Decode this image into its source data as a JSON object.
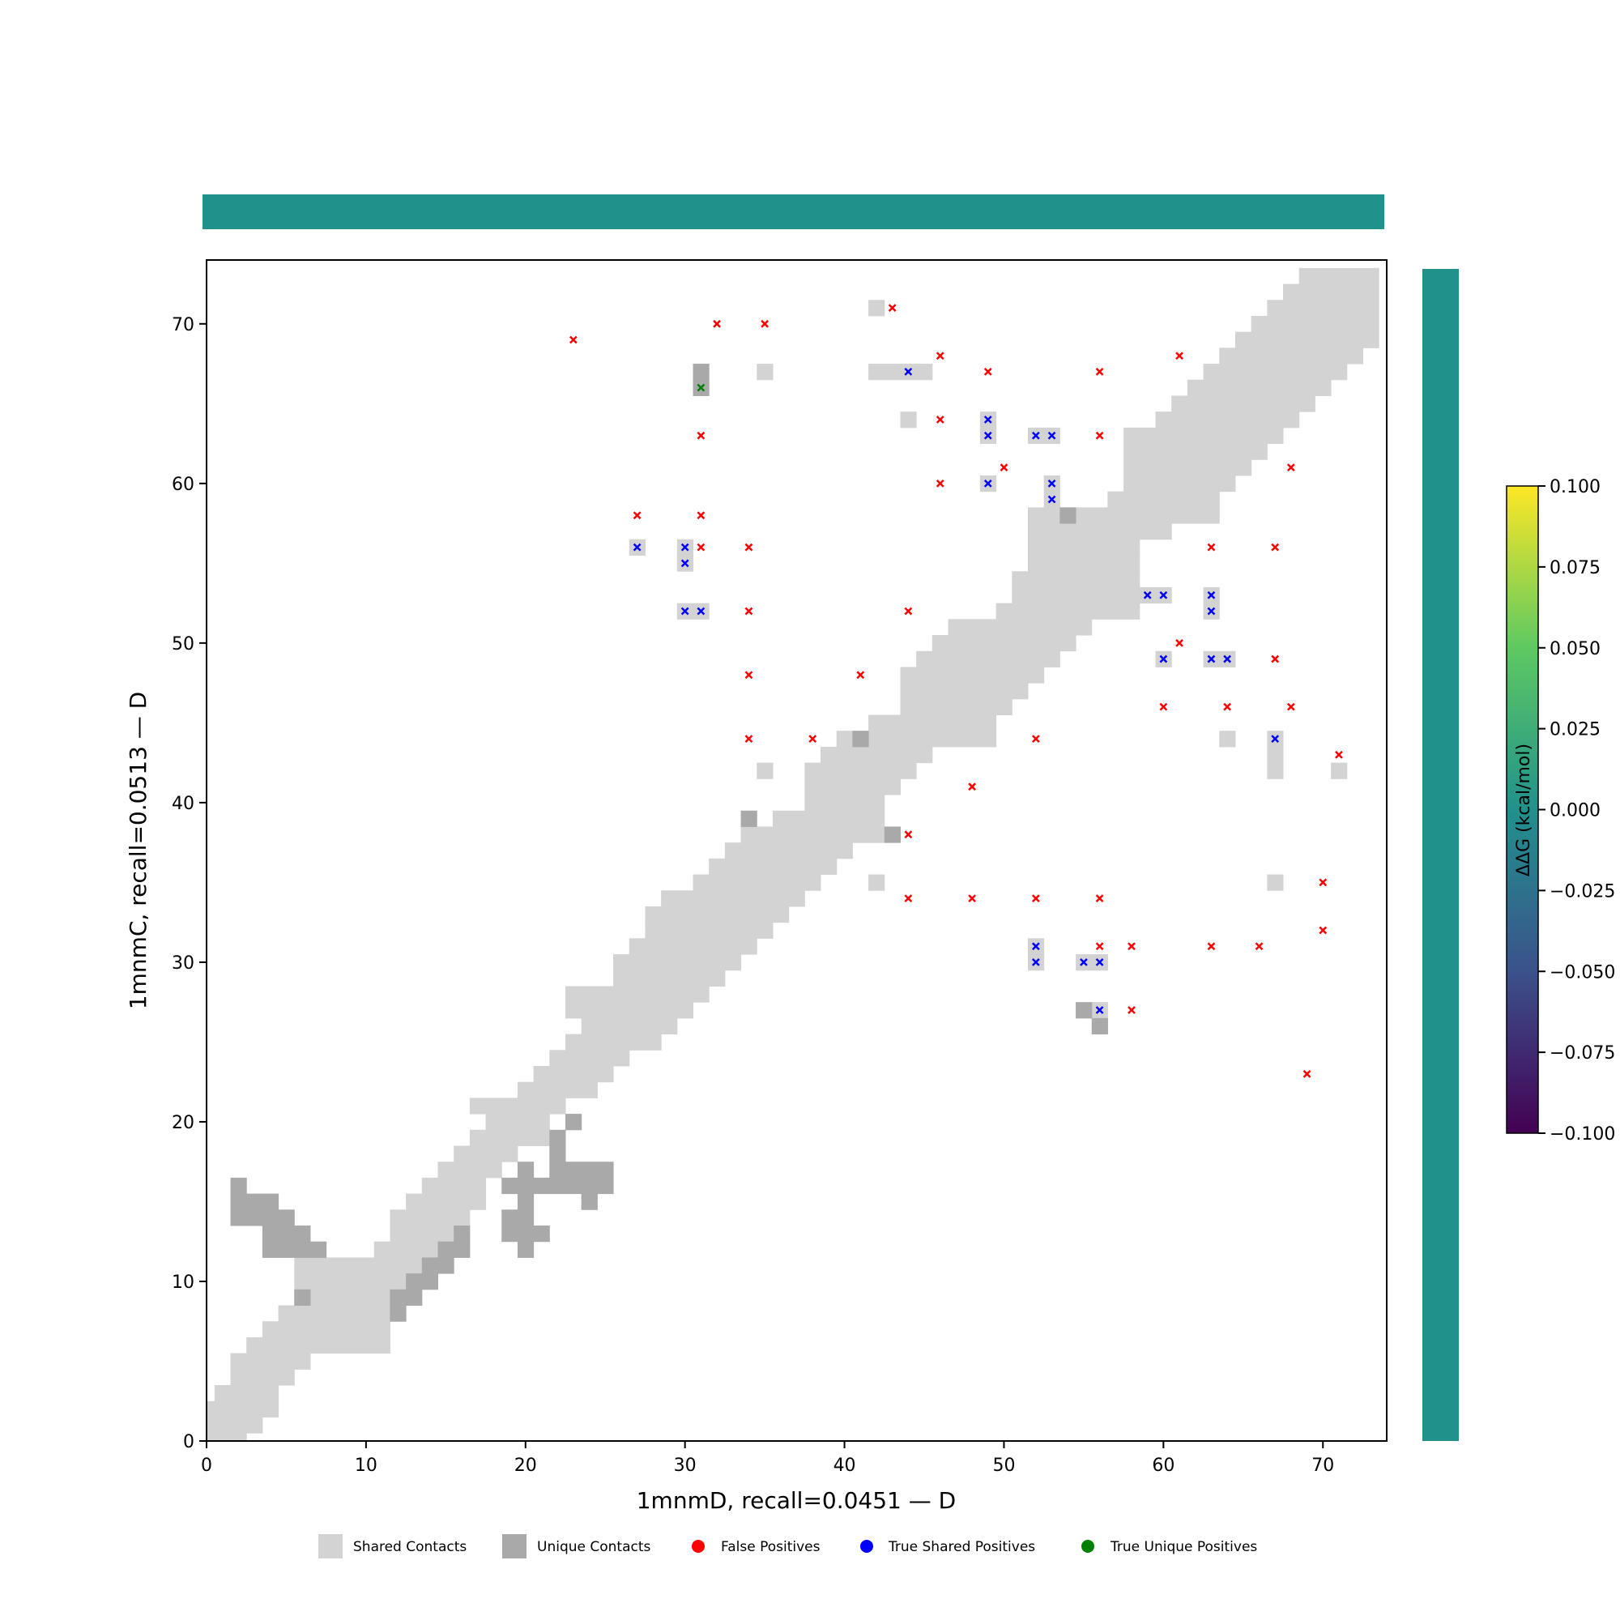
{
  "chart_data": {
    "type": "heatmap",
    "xlabel": "1mnmD, recall=0.0451 — D",
    "ylabel": "1mnmC, recall=0.0513 — D",
    "xlim": [
      0,
      74
    ],
    "ylim": [
      0,
      74
    ],
    "xticks": [
      0,
      10,
      20,
      30,
      40,
      50,
      60,
      70
    ],
    "yticks": [
      0,
      10,
      20,
      30,
      40,
      50,
      60,
      70
    ],
    "colors": {
      "shared": "#d3d3d3",
      "unique": "#a9a9a9",
      "false_positive": "#ff0000",
      "true_shared": "#0000ff",
      "true_unique": "#008000",
      "side_bar": "#21918c"
    },
    "shared_band_rows": [
      [
        0,
        0,
        2
      ],
      [
        1,
        0,
        3
      ],
      [
        2,
        0,
        4
      ],
      [
        3,
        1,
        4
      ],
      [
        4,
        2,
        5
      ],
      [
        5,
        2,
        6
      ],
      [
        6,
        3,
        11
      ],
      [
        7,
        4,
        11
      ],
      [
        8,
        5,
        11
      ],
      [
        9,
        6,
        11
      ],
      [
        10,
        6,
        12
      ],
      [
        11,
        6,
        13
      ],
      [
        12,
        11,
        14
      ],
      [
        13,
        12,
        15
      ],
      [
        14,
        12,
        16
      ],
      [
        15,
        13,
        17
      ],
      [
        16,
        14,
        17
      ],
      [
        17,
        15,
        18
      ],
      [
        18,
        16,
        19
      ],
      [
        19,
        17,
        21
      ],
      [
        20,
        18,
        21
      ],
      [
        21,
        17,
        22
      ],
      [
        22,
        20,
        24
      ],
      [
        23,
        21,
        25
      ],
      [
        24,
        22,
        26
      ],
      [
        25,
        23,
        28
      ],
      [
        26,
        24,
        29
      ],
      [
        27,
        23,
        30
      ],
      [
        28,
        23,
        31
      ],
      [
        29,
        26,
        32
      ],
      [
        30,
        26,
        33
      ],
      [
        31,
        27,
        34
      ],
      [
        32,
        28,
        35
      ],
      [
        33,
        28,
        36
      ],
      [
        34,
        29,
        37
      ],
      [
        35,
        31,
        38
      ],
      [
        36,
        32,
        39
      ],
      [
        37,
        33,
        40
      ],
      [
        38,
        34,
        42
      ],
      [
        39,
        36,
        42
      ],
      [
        40,
        38,
        42
      ],
      [
        41,
        38,
        43
      ],
      [
        42,
        38,
        44
      ],
      [
        43,
        39,
        45
      ],
      [
        44,
        40,
        49
      ],
      [
        45,
        42,
        49
      ],
      [
        46,
        44,
        50
      ],
      [
        47,
        44,
        51
      ],
      [
        48,
        44,
        52
      ],
      [
        49,
        45,
        53
      ],
      [
        50,
        46,
        54
      ],
      [
        51,
        47,
        55
      ],
      [
        52,
        50,
        58
      ],
      [
        53,
        51,
        58
      ],
      [
        54,
        51,
        58
      ],
      [
        55,
        52,
        58
      ],
      [
        56,
        52,
        58
      ],
      [
        57,
        52,
        60
      ],
      [
        58,
        52,
        63
      ],
      [
        59,
        57,
        63
      ],
      [
        60,
        58,
        64
      ],
      [
        61,
        58,
        65
      ],
      [
        62,
        58,
        66
      ],
      [
        63,
        58,
        67
      ],
      [
        64,
        60,
        68
      ],
      [
        65,
        61,
        69
      ],
      [
        66,
        62,
        70
      ],
      [
        67,
        63,
        71
      ],
      [
        68,
        64,
        72
      ],
      [
        69,
        65,
        73
      ],
      [
        70,
        66,
        73
      ],
      [
        71,
        67,
        73
      ],
      [
        72,
        68,
        73
      ],
      [
        73,
        69,
        73
      ]
    ],
    "shared_isolated": [
      [
        42,
        71
      ],
      [
        35,
        67
      ],
      [
        42,
        67
      ],
      [
        43,
        67
      ],
      [
        44,
        67
      ],
      [
        45,
        67
      ],
      [
        44,
        64
      ],
      [
        49,
        63
      ],
      [
        49,
        64
      ],
      [
        52,
        63
      ],
      [
        53,
        63
      ],
      [
        49,
        60
      ],
      [
        53,
        60
      ],
      [
        53,
        59
      ],
      [
        27,
        56
      ],
      [
        30,
        56
      ],
      [
        30,
        55
      ],
      [
        30,
        52
      ],
      [
        31,
        52
      ],
      [
        59,
        53
      ],
      [
        60,
        53
      ],
      [
        63,
        53
      ],
      [
        63,
        52
      ],
      [
        60,
        49
      ],
      [
        63,
        49
      ],
      [
        64,
        49
      ],
      [
        64,
        44
      ],
      [
        67,
        44
      ],
      [
        67,
        43
      ],
      [
        67,
        42
      ],
      [
        71,
        42
      ],
      [
        35,
        42
      ],
      [
        42,
        35
      ],
      [
        67,
        35
      ],
      [
        52,
        31
      ],
      [
        52,
        30
      ],
      [
        55,
        30
      ],
      [
        56,
        30
      ],
      [
        56,
        27
      ]
    ],
    "unique_contacts": [
      [
        31,
        67
      ],
      [
        31,
        66
      ],
      [
        54,
        58
      ],
      [
        41,
        44
      ],
      [
        34,
        39
      ],
      [
        43,
        38
      ],
      [
        55,
        27
      ],
      [
        56,
        26
      ],
      [
        2,
        14
      ],
      [
        2,
        15
      ],
      [
        2,
        16
      ],
      [
        3,
        14
      ],
      [
        3,
        15
      ],
      [
        4,
        14
      ],
      [
        4,
        15
      ],
      [
        4,
        12
      ],
      [
        4,
        13
      ],
      [
        5,
        12
      ],
      [
        5,
        13
      ],
      [
        5,
        14
      ],
      [
        6,
        12
      ],
      [
        6,
        13
      ],
      [
        7,
        12
      ],
      [
        6,
        9
      ],
      [
        12,
        8
      ],
      [
        12,
        9
      ],
      [
        13,
        9
      ],
      [
        13,
        10
      ],
      [
        14,
        10
      ],
      [
        14,
        11
      ],
      [
        15,
        11
      ],
      [
        15,
        12
      ],
      [
        16,
        12
      ],
      [
        16,
        13
      ],
      [
        19,
        16
      ],
      [
        20,
        16
      ],
      [
        21,
        16
      ],
      [
        22,
        16
      ],
      [
        23,
        16
      ],
      [
        24,
        16
      ],
      [
        25,
        16
      ],
      [
        20,
        17
      ],
      [
        22,
        17
      ],
      [
        23,
        17
      ],
      [
        24,
        17
      ],
      [
        25,
        17
      ],
      [
        22,
        18
      ],
      [
        22,
        19
      ],
      [
        23,
        20
      ],
      [
        20,
        15
      ],
      [
        24,
        15
      ],
      [
        19,
        14
      ],
      [
        20,
        14
      ],
      [
        19,
        13
      ],
      [
        20,
        13
      ],
      [
        21,
        13
      ],
      [
        20,
        12
      ]
    ],
    "false_positives": [
      [
        23,
        69
      ],
      [
        32,
        70
      ],
      [
        35,
        70
      ],
      [
        43,
        71
      ],
      [
        46,
        68
      ],
      [
        49,
        67
      ],
      [
        56,
        67
      ],
      [
        61,
        68
      ],
      [
        46,
        64
      ],
      [
        56,
        63
      ],
      [
        31,
        63
      ],
      [
        50,
        61
      ],
      [
        46,
        60
      ],
      [
        68,
        61
      ],
      [
        27,
        58
      ],
      [
        31,
        58
      ],
      [
        31,
        56
      ],
      [
        34,
        56
      ],
      [
        63,
        56
      ],
      [
        67,
        56
      ],
      [
        34,
        52
      ],
      [
        44,
        52
      ],
      [
        61,
        50
      ],
      [
        67,
        49
      ],
      [
        34,
        48
      ],
      [
        41,
        48
      ],
      [
        60,
        46
      ],
      [
        64,
        46
      ],
      [
        68,
        46
      ],
      [
        34,
        44
      ],
      [
        38,
        44
      ],
      [
        52,
        44
      ],
      [
        71,
        43
      ],
      [
        48,
        41
      ],
      [
        44,
        38
      ],
      [
        70,
        35
      ],
      [
        44,
        34
      ],
      [
        48,
        34
      ],
      [
        52,
        34
      ],
      [
        56,
        34
      ],
      [
        56,
        31
      ],
      [
        58,
        31
      ],
      [
        63,
        31
      ],
      [
        66,
        31
      ],
      [
        70,
        32
      ],
      [
        58,
        27
      ],
      [
        69,
        23
      ]
    ],
    "true_shared_positives": [
      [
        44,
        67
      ],
      [
        49,
        64
      ],
      [
        49,
        63
      ],
      [
        52,
        63
      ],
      [
        53,
        63
      ],
      [
        49,
        60
      ],
      [
        53,
        60
      ],
      [
        53,
        59
      ],
      [
        27,
        56
      ],
      [
        30,
        56
      ],
      [
        30,
        55
      ],
      [
        30,
        52
      ],
      [
        31,
        52
      ],
      [
        59,
        53
      ],
      [
        60,
        53
      ],
      [
        63,
        53
      ],
      [
        63,
        52
      ],
      [
        60,
        49
      ],
      [
        63,
        49
      ],
      [
        64,
        49
      ],
      [
        67,
        44
      ],
      [
        52,
        31
      ],
      [
        52,
        30
      ],
      [
        55,
        30
      ],
      [
        56,
        30
      ],
      [
        56,
        27
      ]
    ],
    "true_unique_positives": [
      [
        31,
        66
      ]
    ],
    "legend": {
      "position": "bottom",
      "items": [
        "Shared Contacts",
        "Unique Contacts",
        "False Positives",
        "True Shared Positives",
        "True Unique Positives"
      ]
    },
    "colorbar": {
      "label": "ΔΔG (kcal/mol)",
      "range": [
        -0.1,
        0.1
      ],
      "ticks": [
        "0.100",
        "0.075",
        "0.050",
        "0.025",
        "0.000",
        "−0.025",
        "−0.050",
        "−0.075",
        "−0.100"
      ]
    }
  }
}
